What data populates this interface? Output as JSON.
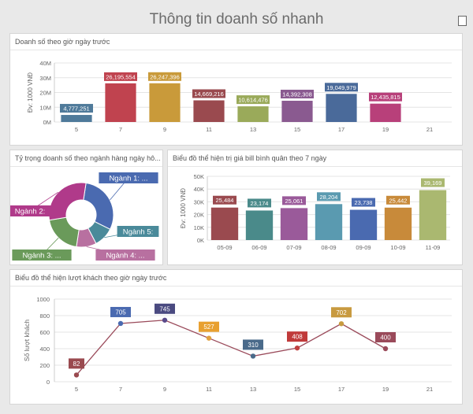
{
  "page_title": "Thông tin doanh số nhanh",
  "colors": [
    "#4f7aa0",
    "#c0434f",
    "#c99a38",
    "#9a4a6a",
    "#9aaa58",
    "#8a5a90",
    "#4a6a9a",
    "#b83a78"
  ],
  "chart_data": [
    {
      "type": "bar",
      "title": "Doanh số theo giờ ngày trước",
      "ylabel": "Đv: 1000 VNĐ",
      "categories": [
        "5",
        "7",
        "9",
        "11",
        "13",
        "15",
        "17",
        "19",
        "21"
      ],
      "values": [
        4777251,
        26195554,
        26247396,
        14669216,
        10614476,
        14392308,
        19049979,
        12435815,
        0
      ],
      "labels": [
        "4,777,251",
        "26,195,554",
        "26,247,396",
        "14,669,216",
        "10,614,476",
        "14,392,308",
        "19,049,979",
        "12,435,815",
        ""
      ],
      "colors": [
        "#4f7a9a",
        "#c0434f",
        "#c99a3a",
        "#9a4a4f",
        "#9aaa5a",
        "#8a5a90",
        "#4a6a9a",
        "#b8407a",
        "#cccccc"
      ],
      "yticks": [
        "0M",
        "10M",
        "20M",
        "30M",
        "40M"
      ],
      "ylim": [
        0,
        40000000
      ]
    },
    {
      "type": "pie",
      "title": "Tỷ trọng doanh số theo ngành hàng ngày hô...",
      "slices": [
        {
          "label": "Ngành 1: ...",
          "value": 30,
          "color": "#4a6ab0"
        },
        {
          "label": "Ngành 5:",
          "value": 10,
          "color": "#4a8a9a"
        },
        {
          "label": "Ngành 4: ...",
          "value": 10,
          "color": "#b870a0"
        },
        {
          "label": "Ngành 3: ...",
          "value": 20,
          "color": "#6a9a5a"
        },
        {
          "label": "Ngành 2:",
          "value": 30,
          "color": "#b03a8a"
        }
      ]
    },
    {
      "type": "bar",
      "title": "Biểu đồ thể hiện trị giá bill bình quân theo 7 ngày",
      "ylabel": "Đv: 1000 VNĐ",
      "categories": [
        "05-09",
        "06-09",
        "07-09",
        "08-09",
        "09-09",
        "10-09",
        "11-09"
      ],
      "values": [
        25484,
        23174,
        25061,
        28204,
        23738,
        25442,
        39169
      ],
      "labels": [
        "25,484",
        "23,174",
        "25,061",
        "28,204",
        "23,738",
        "25,442",
        "39,169"
      ],
      "colors": [
        "#9a4a4f",
        "#4a8a8a",
        "#9a5a9a",
        "#5a9ab0",
        "#4a6ab0",
        "#c88a3a",
        "#aab870"
      ],
      "yticks": [
        "0K",
        "10K",
        "20K",
        "30K",
        "40K",
        "50K"
      ],
      "ylim": [
        0,
        50000
      ]
    },
    {
      "type": "line",
      "title": "Biểu đồ thể hiện lượt khách theo giờ ngày trước",
      "ylabel": "Số lượt khách",
      "categories": [
        "5",
        "7",
        "9",
        "11",
        "13",
        "15",
        "17",
        "19",
        "21"
      ],
      "values": [
        82,
        705,
        745,
        527,
        310,
        408,
        702,
        400,
        null
      ],
      "labels": [
        "82",
        "705",
        "745",
        "527",
        "310",
        "408",
        "702",
        "400",
        ""
      ],
      "point_colors": [
        "#9a4a4f",
        "#4a6ab0",
        "#5a4a8a",
        "#e0a040",
        "#4a6a8a",
        "#c04040",
        "#c89a40",
        "#9a4a5a",
        ""
      ],
      "label_colors": [
        "#9a4a4f",
        "#4a6ab0",
        "#4a4a80",
        "#e8a030",
        "#4a6a8a",
        "#c03a3a",
        "#c89a40",
        "#9a4a5a",
        ""
      ],
      "yticks": [
        "0",
        "200",
        "400",
        "600",
        "800",
        "1000"
      ],
      "ylim": [
        0,
        1000
      ]
    }
  ]
}
